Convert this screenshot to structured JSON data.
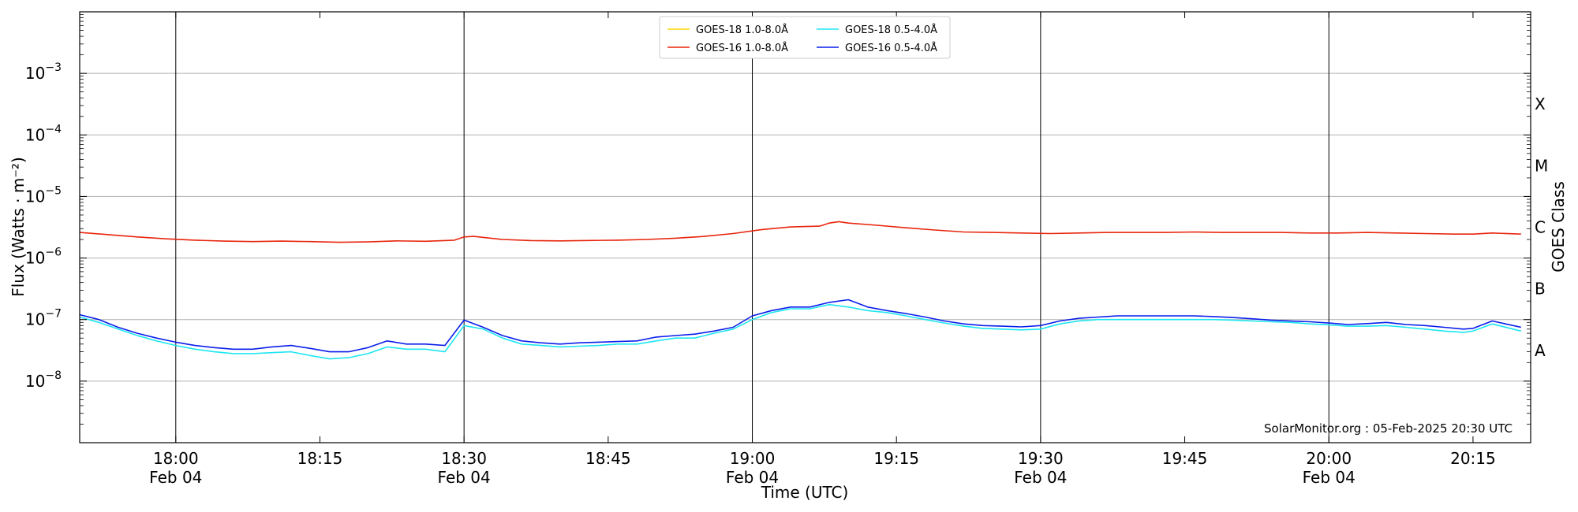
{
  "chart_data": {
    "type": "line",
    "title": "",
    "xlabel": "Time (UTC)",
    "ylabel": "Flux (Watts · m⁻²)",
    "y2label": "GOES Class",
    "yscale": "log",
    "ylim_log10": [
      -9,
      -2
    ],
    "xlim_minutes": [
      "17:50",
      "20:21"
    ],
    "grid": "horizontal at decades",
    "legend_position": "top-center",
    "legend_columns": 2,
    "x_ticks": [
      {
        "time": "18:00",
        "date": "Feb 04",
        "major": true
      },
      {
        "time": "18:15",
        "date": "",
        "major": false
      },
      {
        "time": "18:30",
        "date": "Feb 04",
        "major": true
      },
      {
        "time": "18:45",
        "date": "",
        "major": false
      },
      {
        "time": "19:00",
        "date": "Feb 04",
        "major": true
      },
      {
        "time": "19:15",
        "date": "",
        "major": false
      },
      {
        "time": "19:30",
        "date": "Feb 04",
        "major": true
      },
      {
        "time": "19:45",
        "date": "",
        "major": false
      },
      {
        "time": "20:00",
        "date": "Feb 04",
        "major": true
      },
      {
        "time": "20:15",
        "date": "",
        "major": false
      }
    ],
    "y_ticks": [
      {
        "label": "10",
        "exp": "−8",
        "log10": -8
      },
      {
        "label": "10",
        "exp": "−7",
        "log10": -7
      },
      {
        "label": "10",
        "exp": "−6",
        "log10": -6
      },
      {
        "label": "10",
        "exp": "−5",
        "log10": -5
      },
      {
        "label": "10",
        "exp": "−4",
        "log10": -4
      },
      {
        "label": "10",
        "exp": "−3",
        "log10": -3
      }
    ],
    "goes_classes": [
      {
        "label": "A",
        "log10": -7.5
      },
      {
        "label": "B",
        "log10": -6.5
      },
      {
        "label": "C",
        "log10": -5.5
      },
      {
        "label": "M",
        "log10": -4.5
      },
      {
        "label": "X",
        "log10": -3.5
      }
    ],
    "annotation": "SolarMonitor.org : 05-Feb-2025 20:30 UTC",
    "series": [
      {
        "name": "GOES-18 1.0-8.0Å",
        "color": "#ffd700",
        "x": [],
        "y": []
      },
      {
        "name": "GOES-16 1.0-8.0Å",
        "color": "#e8250c",
        "x": [
          "17:50",
          "17:53",
          "17:56",
          "17:59",
          "18:02",
          "18:05",
          "18:08",
          "18:11",
          "18:14",
          "18:17",
          "18:20",
          "18:23",
          "18:26",
          "18:29",
          "18:30",
          "18:31",
          "18:34",
          "18:37",
          "18:40",
          "18:43",
          "18:46",
          "18:49",
          "18:52",
          "18:55",
          "18:58",
          "19:01",
          "19:04",
          "19:07",
          "19:08",
          "19:09",
          "19:10",
          "19:13",
          "19:16",
          "19:19",
          "19:22",
          "19:25",
          "19:28",
          "19:31",
          "19:34",
          "19:37",
          "19:40",
          "19:43",
          "19:46",
          "19:49",
          "19:52",
          "19:55",
          "19:58",
          "20:01",
          "20:04",
          "20:07",
          "20:10",
          "20:13",
          "20:15",
          "20:17",
          "20:20"
        ],
        "y": [
          2.6e-06,
          2.4e-06,
          2.2e-06,
          2.05e-06,
          1.95e-06,
          1.88e-06,
          1.85e-06,
          1.88e-06,
          1.85e-06,
          1.8e-06,
          1.83e-06,
          1.9e-06,
          1.87e-06,
          1.95e-06,
          2.2e-06,
          2.25e-06,
          2e-06,
          1.92e-06,
          1.9e-06,
          1.93e-06,
          1.95e-06,
          2e-06,
          2.1e-06,
          2.25e-06,
          2.5e-06,
          2.9e-06,
          3.2e-06,
          3.3e-06,
          3.7e-06,
          3.9e-06,
          3.7e-06,
          3.4e-06,
          3.1e-06,
          2.85e-06,
          2.65e-06,
          2.6e-06,
          2.55e-06,
          2.5e-06,
          2.55e-06,
          2.6e-06,
          2.6e-06,
          2.6e-06,
          2.65e-06,
          2.6e-06,
          2.6e-06,
          2.6e-06,
          2.55e-06,
          2.55e-06,
          2.6e-06,
          2.55e-06,
          2.5e-06,
          2.45e-06,
          2.45e-06,
          2.55e-06,
          2.45e-06
        ]
      },
      {
        "name": "GOES-18 0.5-4.0Å",
        "color": "#1ee6f0",
        "x": [
          "17:50",
          "17:52",
          "17:54",
          "17:56",
          "17:58",
          "18:00",
          "18:02",
          "18:04",
          "18:06",
          "18:08",
          "18:10",
          "18:12",
          "18:14",
          "18:16",
          "18:18",
          "18:20",
          "18:22",
          "18:24",
          "18:26",
          "18:28",
          "18:30",
          "18:32",
          "18:34",
          "18:36",
          "18:38",
          "18:40",
          "18:42",
          "18:44",
          "18:46",
          "18:48",
          "18:50",
          "18:52",
          "18:54",
          "18:56",
          "18:58",
          "19:00",
          "19:02",
          "19:04",
          "19:06",
          "19:08",
          "19:10",
          "19:12",
          "19:14",
          "19:16",
          "19:18",
          "19:20",
          "19:22",
          "19:24",
          "19:26",
          "19:28",
          "19:30",
          "19:32",
          "19:34",
          "19:36",
          "19:38",
          "19:40",
          "19:42",
          "19:44",
          "19:46",
          "19:48",
          "19:50",
          "19:52",
          "19:54",
          "19:56",
          "19:58",
          "20:00",
          "20:02",
          "20:04",
          "20:06",
          "20:08",
          "20:10",
          "20:12",
          "20:14",
          "20:15",
          "20:17",
          "20:20"
        ],
        "y": [
          1.1e-07,
          9e-08,
          7e-08,
          5.5e-08,
          4.5e-08,
          3.8e-08,
          3.3e-08,
          3e-08,
          2.8e-08,
          2.8e-08,
          2.9e-08,
          3e-08,
          2.6e-08,
          2.3e-08,
          2.4e-08,
          2.8e-08,
          3.6e-08,
          3.3e-08,
          3.3e-08,
          3e-08,
          8e-08,
          7e-08,
          5e-08,
          4e-08,
          3.8e-08,
          3.6e-08,
          3.7e-08,
          3.8e-08,
          4e-08,
          4e-08,
          4.5e-08,
          5e-08,
          5e-08,
          6e-08,
          7e-08,
          1e-07,
          1.3e-07,
          1.5e-07,
          1.5e-07,
          1.75e-07,
          1.6e-07,
          1.4e-07,
          1.3e-07,
          1.15e-07,
          1e-07,
          8.8e-08,
          7.8e-08,
          7.2e-08,
          7e-08,
          6.8e-08,
          7e-08,
          8.5e-08,
          9.5e-08,
          1e-07,
          1e-07,
          1e-07,
          1e-07,
          1e-07,
          1e-07,
          1e-07,
          9.8e-08,
          9.5e-08,
          9.2e-08,
          9e-08,
          8.5e-08,
          8.2e-08,
          7.8e-08,
          7.8e-08,
          8e-08,
          7.5e-08,
          7e-08,
          6.5e-08,
          6.2e-08,
          6.5e-08,
          8.5e-08,
          6.5e-08
        ]
      },
      {
        "name": "GOES-16 0.5-4.0Å",
        "color": "#0a1eeb",
        "x": [
          "17:50",
          "17:52",
          "17:54",
          "17:56",
          "17:58",
          "18:00",
          "18:02",
          "18:04",
          "18:06",
          "18:08",
          "18:10",
          "18:12",
          "18:14",
          "18:16",
          "18:18",
          "18:20",
          "18:22",
          "18:24",
          "18:26",
          "18:28",
          "18:30",
          "18:32",
          "18:34",
          "18:36",
          "18:38",
          "18:40",
          "18:42",
          "18:44",
          "18:46",
          "18:48",
          "18:50",
          "18:52",
          "18:54",
          "18:56",
          "18:58",
          "19:00",
          "19:02",
          "19:04",
          "19:06",
          "19:08",
          "19:10",
          "19:12",
          "19:14",
          "19:16",
          "19:18",
          "19:20",
          "19:22",
          "19:24",
          "19:26",
          "19:28",
          "19:30",
          "19:32",
          "19:34",
          "19:36",
          "19:38",
          "19:40",
          "19:42",
          "19:44",
          "19:46",
          "19:48",
          "19:50",
          "19:52",
          "19:54",
          "19:56",
          "19:58",
          "20:00",
          "20:02",
          "20:04",
          "20:06",
          "20:08",
          "20:10",
          "20:12",
          "20:14",
          "20:15",
          "20:17",
          "20:20"
        ],
        "y": [
          1.2e-07,
          1e-07,
          7.5e-08,
          6e-08,
          5e-08,
          4.3e-08,
          3.8e-08,
          3.5e-08,
          3.3e-08,
          3.3e-08,
          3.6e-08,
          3.8e-08,
          3.4e-08,
          3e-08,
          3e-08,
          3.5e-08,
          4.5e-08,
          4e-08,
          4e-08,
          3.8e-08,
          9.8e-08,
          7.5e-08,
          5.5e-08,
          4.5e-08,
          4.2e-08,
          4e-08,
          4.2e-08,
          4.3e-08,
          4.4e-08,
          4.5e-08,
          5.2e-08,
          5.5e-08,
          5.8e-08,
          6.5e-08,
          7.5e-08,
          1.15e-07,
          1.4e-07,
          1.6e-07,
          1.6e-07,
          1.9e-07,
          2.1e-07,
          1.6e-07,
          1.4e-07,
          1.25e-07,
          1.1e-07,
          9.5e-08,
          8.5e-08,
          8e-08,
          7.8e-08,
          7.6e-08,
          8e-08,
          9.5e-08,
          1.05e-07,
          1.1e-07,
          1.15e-07,
          1.15e-07,
          1.15e-07,
          1.15e-07,
          1.15e-07,
          1.12e-07,
          1.08e-07,
          1.03e-07,
          9.8e-08,
          9.5e-08,
          9.2e-08,
          8.8e-08,
          8.3e-08,
          8.6e-08,
          9e-08,
          8.3e-08,
          8e-08,
          7.5e-08,
          7e-08,
          7.2e-08,
          9.5e-08,
          7.5e-08
        ]
      }
    ]
  }
}
